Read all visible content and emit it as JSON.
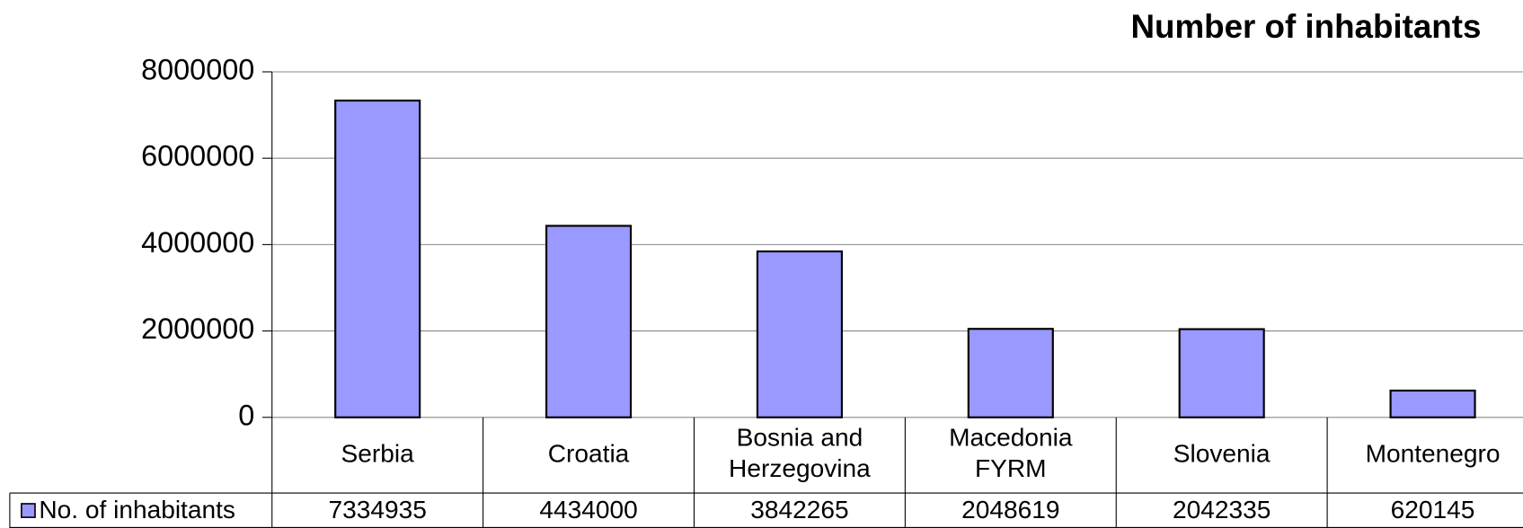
{
  "chart_data": {
    "type": "bar",
    "title": "Number of inhabitants",
    "categories": [
      "Serbia",
      "Croatia",
      "Bosnia and Herzegovina",
      "Macedonia FYRM",
      "Slovenia",
      "Montenegro"
    ],
    "series": [
      {
        "name": "No. of inhabitants",
        "color": "#9999ff",
        "values": [
          7334935,
          4434000,
          3842265,
          2048619,
          2042335,
          620145
        ]
      }
    ],
    "ylim": [
      0,
      8000000
    ],
    "yticks": [
      0,
      2000000,
      4000000,
      6000000,
      8000000
    ],
    "grid": true,
    "legend": "bottom-left"
  }
}
